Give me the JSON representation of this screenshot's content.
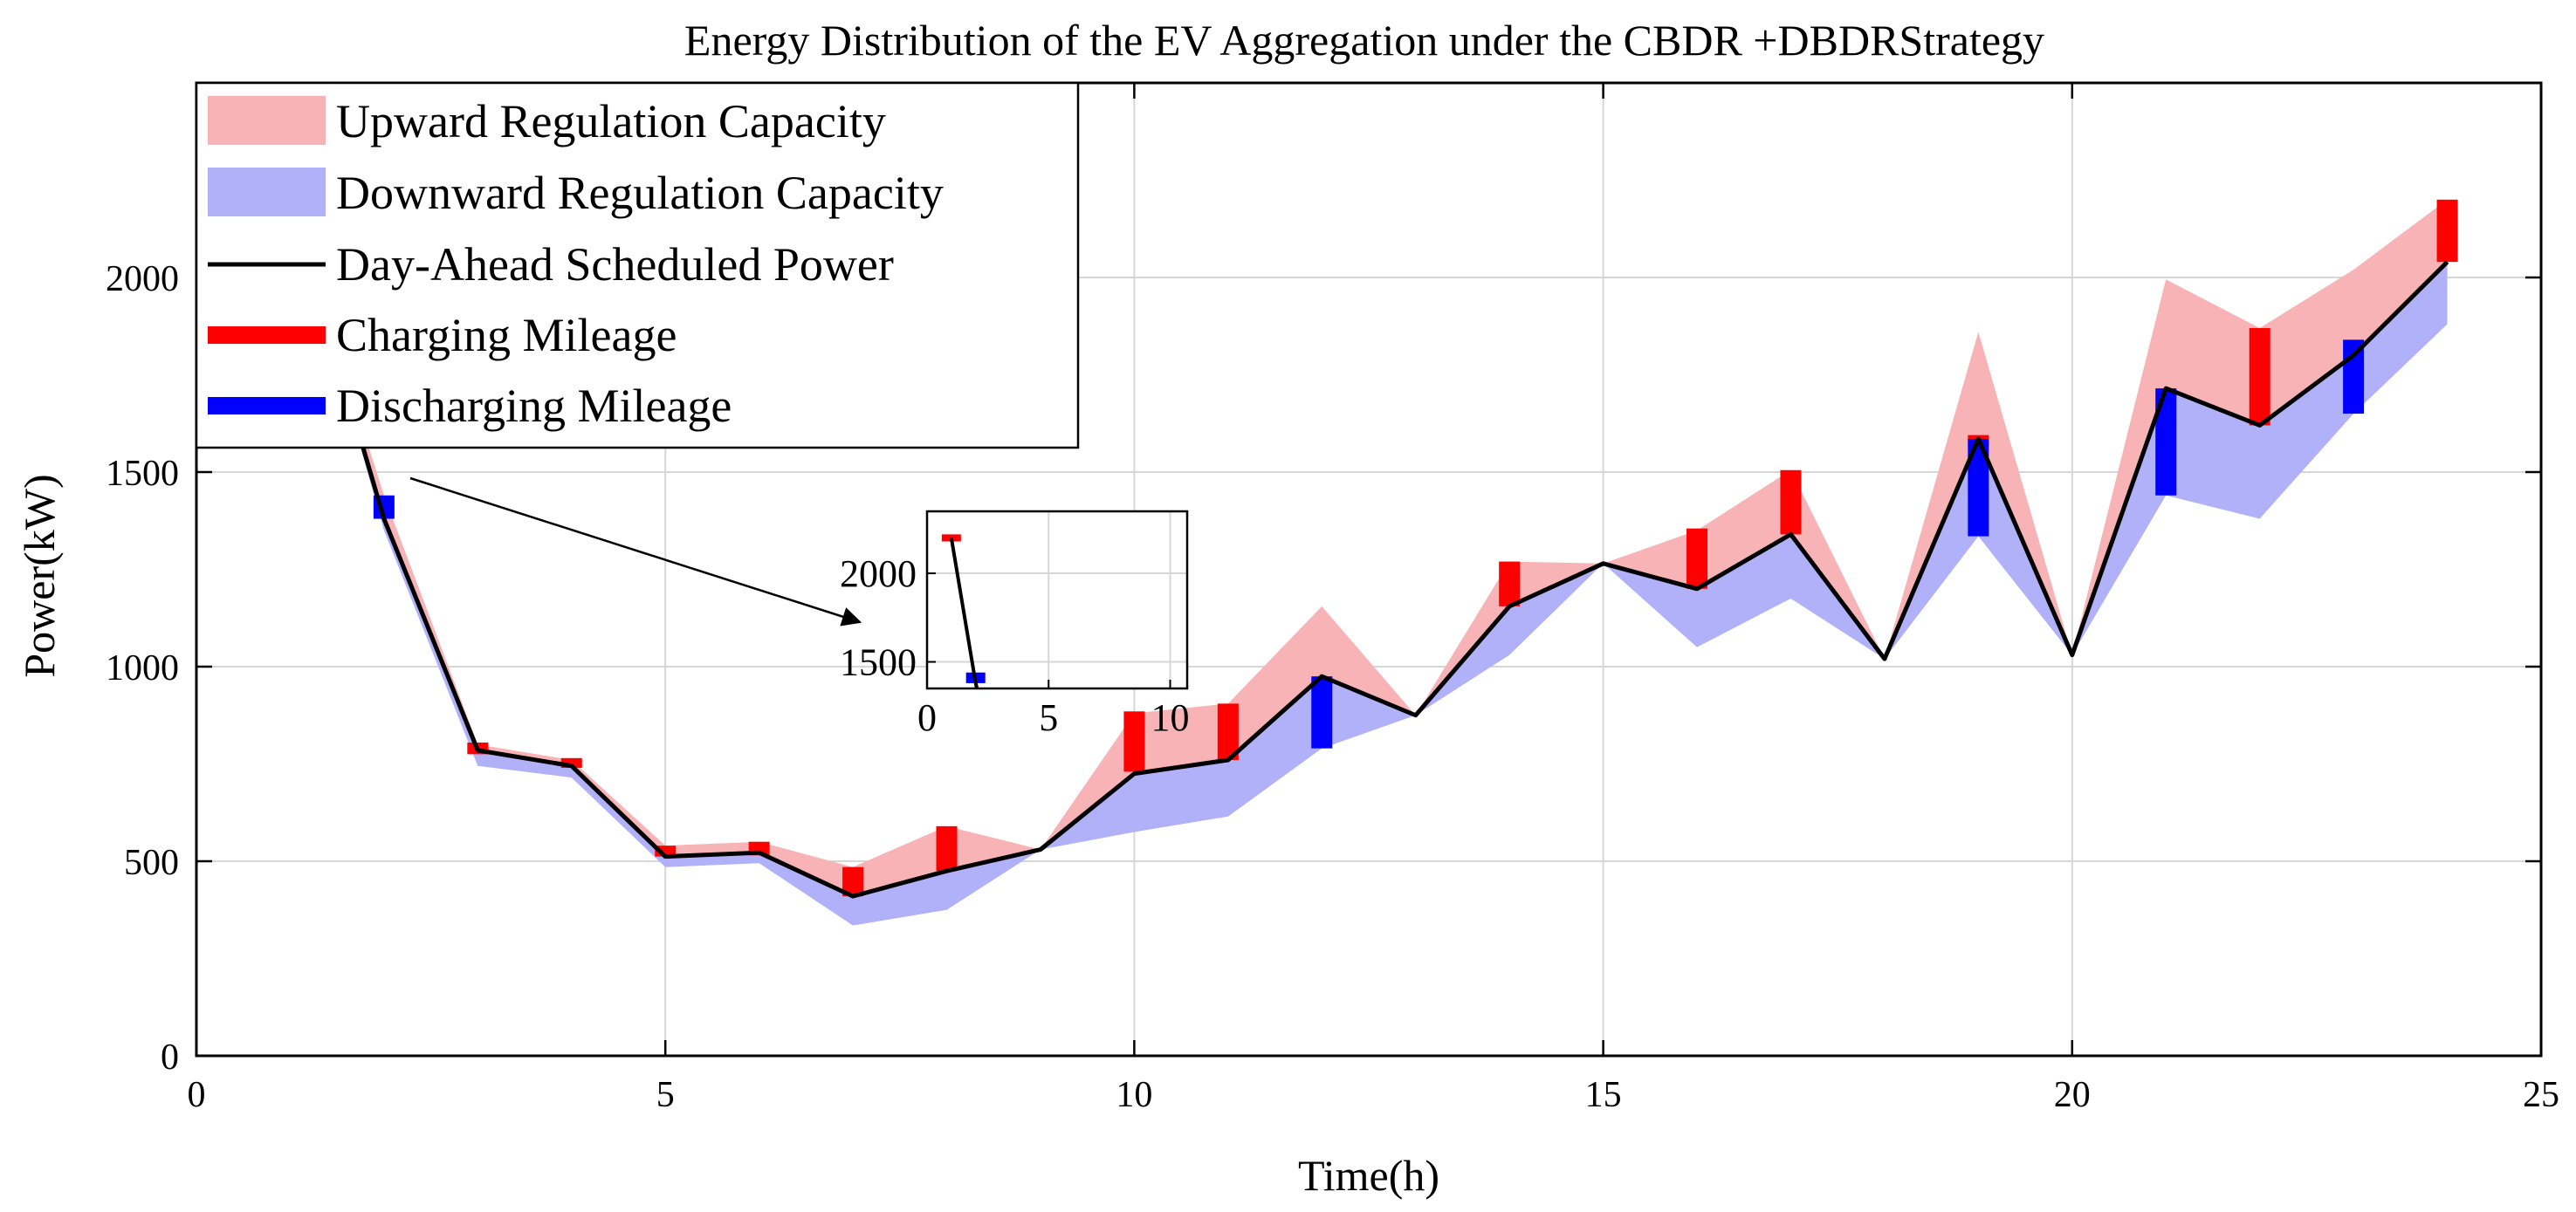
{
  "chart_data": {
    "type": "area",
    "title": "Energy Distribution of the EV Aggregation under the CBDR +DBDRStrategy",
    "xlabel": "Time(h)",
    "ylabel": "Power(kW)",
    "xlim": [
      0,
      25
    ],
    "ylim": [
      0,
      2500
    ],
    "xticks": [
      0,
      5,
      10,
      15,
      20,
      25
    ],
    "yticks": [
      0,
      500,
      1000,
      1500,
      2000
    ],
    "grid": true,
    "colors": {
      "upward": "#f7b3b5",
      "downward": "#b1b1fa",
      "scheduled": "#000000",
      "charging": "#ff0000",
      "discharging": "#0000ff"
    },
    "legend": {
      "location": "top-left",
      "entries": [
        {
          "key": "upward",
          "label": "Upward Regulation Capacity"
        },
        {
          "key": "downward",
          "label": "Downward Regulation Capacity"
        },
        {
          "key": "scheduled",
          "label": "Day-Ahead Scheduled Power"
        },
        {
          "key": "charging",
          "label": "Charging Mileage"
        },
        {
          "key": "discharging",
          "label": "Discharging Mileage"
        }
      ]
    },
    "x": [
      1,
      2,
      3,
      4,
      5,
      6,
      7,
      8,
      9,
      10,
      11,
      12,
      13,
      14,
      15,
      16,
      17,
      18,
      19,
      20,
      21,
      22,
      23,
      24
    ],
    "series": [
      {
        "name": "Day-Ahead Scheduled Power",
        "key": "scheduled",
        "values": [
          2200,
          1380,
          785,
          745,
          512,
          522,
          410,
          475,
          530,
          725,
          760,
          975,
          875,
          1155,
          1265,
          1200,
          1340,
          1020,
          1585,
          1030,
          1715,
          1620,
          1800,
          2040
        ]
      },
      {
        "name": "Upward Regulation Capacity (upper bound)",
        "key": "upward",
        "values": [
          2200,
          1440,
          800,
          760,
          540,
          550,
          485,
          590,
          530,
          880,
          905,
          1155,
          875,
          1270,
          1265,
          1350,
          1505,
          1020,
          1860,
          1030,
          1995,
          1870,
          2020,
          2200
        ]
      },
      {
        "name": "Downward Regulation Capacity (lower bound)",
        "key": "downward",
        "values": [
          2200,
          1350,
          745,
          715,
          485,
          495,
          335,
          375,
          530,
          575,
          615,
          790,
          875,
          1030,
          1265,
          1050,
          1175,
          1020,
          1335,
          1030,
          1440,
          1380,
          1650,
          1880
        ]
      },
      {
        "name": "Charging Mileage",
        "key": "charging",
        "bars": [
          {
            "x": 1,
            "low": 2180,
            "high": 2220
          },
          {
            "x": 3,
            "low": 775,
            "high": 805
          },
          {
            "x": 4,
            "low": 740,
            "high": 765
          },
          {
            "x": 5,
            "low": 512,
            "high": 540
          },
          {
            "x": 6,
            "low": 515,
            "high": 550
          },
          {
            "x": 7,
            "low": 410,
            "high": 485
          },
          {
            "x": 8,
            "low": 475,
            "high": 590
          },
          {
            "x": 10,
            "low": 730,
            "high": 885
          },
          {
            "x": 11,
            "low": 760,
            "high": 905
          },
          {
            "x": 14,
            "low": 1155,
            "high": 1270
          },
          {
            "x": 16,
            "low": 1200,
            "high": 1355
          },
          {
            "x": 17,
            "low": 1340,
            "high": 1505
          },
          {
            "x": 19,
            "low": 1570,
            "high": 1595
          },
          {
            "x": 22,
            "low": 1620,
            "high": 1870
          },
          {
            "x": 24,
            "low": 2040,
            "high": 2200
          }
        ]
      },
      {
        "name": "Discharging Mileage",
        "key": "discharging",
        "bars": [
          {
            "x": 2,
            "low": 1380,
            "high": 1440
          },
          {
            "x": 12,
            "low": 790,
            "high": 975
          },
          {
            "x": 19,
            "low": 1335,
            "high": 1585
          },
          {
            "x": 21,
            "low": 1440,
            "high": 1715
          },
          {
            "x": 23,
            "low": 1650,
            "high": 1840
          }
        ]
      }
    ],
    "inset": {
      "xlim": [
        0,
        10.7
      ],
      "ylim": [
        1350,
        2350
      ],
      "xticks": [
        0,
        5,
        10
      ],
      "yticks": [
        1500,
        2000
      ],
      "xticklabels": [
        "0",
        "5",
        "10"
      ],
      "yticklabels": [
        "1500",
        "2000"
      ],
      "annotation": "arrow from main plot (t≈2.3h, 1565 kW) to inset"
    }
  }
}
